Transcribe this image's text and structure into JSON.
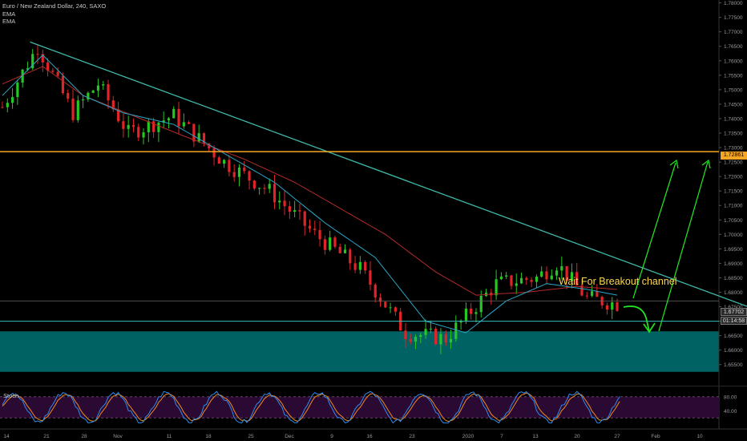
{
  "header": {
    "symbol_line": "Euro / New Zealand Dollar, 240, SAXO",
    "indicators": [
      "EMA",
      "EMA"
    ]
  },
  "stoch_label": "Stoch",
  "annotation": "Wait For Breakout channel",
  "price_tags": {
    "resistance": "1.72861",
    "last_price": "1.67702",
    "countdown": "01:14:58"
  },
  "colors": {
    "background": "#000000",
    "bull_candle": "#26c623",
    "bear_candle": "#e0242a",
    "ema_fast": "#2aa8c8",
    "ema_slow": "#b52a2a",
    "trendline": "#3fb8a8",
    "resistance": "#f5a623",
    "support_line": "#38bfc0",
    "demand_zone": "#006262",
    "arrow": "#22dd22",
    "annotation": "#ffd84a",
    "stoch_k": "#2f8cf0",
    "stoch_d": "#f08a20",
    "stoch_band": "#2a0a33"
  },
  "chart_data": {
    "type": "candlestick",
    "timeframe": "240",
    "y_axis": {
      "range": [
        1.648,
        1.781
      ],
      "ticks": [
        "1.78000",
        "1.77500",
        "1.77000",
        "1.76500",
        "1.76000",
        "1.75500",
        "1.75000",
        "1.74500",
        "1.74000",
        "1.73500",
        "1.73000",
        "1.72500",
        "1.72000",
        "1.71500",
        "1.71000",
        "1.70500",
        "1.70000",
        "1.69500",
        "1.69000",
        "1.68500",
        "1.68000",
        "1.67500",
        "1.67000",
        "1.66500",
        "1.66000",
        "1.65500"
      ]
    },
    "x_axis": {
      "tick_labels": [
        "14",
        "21",
        "28",
        "Nov",
        "11",
        "18",
        "25",
        "Dec",
        "9",
        "16",
        "23",
        "2020",
        "7",
        "13",
        "20",
        "27",
        "Feb",
        "10"
      ]
    },
    "price_path": [
      [
        0,
        1.744
      ],
      [
        7,
        1.765
      ],
      [
        14,
        1.742
      ],
      [
        19,
        1.752
      ],
      [
        25,
        1.735
      ],
      [
        34,
        1.741
      ],
      [
        44,
        1.725
      ],
      [
        53,
        1.715
      ],
      [
        62,
        1.7
      ],
      [
        71,
        1.688
      ],
      [
        80,
        1.666
      ],
      [
        88,
        1.664
      ],
      [
        98,
        1.683
      ],
      [
        106,
        1.685
      ],
      [
        110,
        1.69
      ],
      [
        116,
        1.678
      ],
      [
        122,
        1.676
      ]
    ],
    "ema_fast": [
      [
        0,
        1.748
      ],
      [
        8,
        1.762
      ],
      [
        16,
        1.748
      ],
      [
        24,
        1.742
      ],
      [
        34,
        1.738
      ],
      [
        44,
        1.728
      ],
      [
        54,
        1.718
      ],
      [
        64,
        1.704
      ],
      [
        74,
        1.692
      ],
      [
        84,
        1.67
      ],
      [
        92,
        1.666
      ],
      [
        100,
        1.677
      ],
      [
        108,
        1.683
      ],
      [
        116,
        1.681
      ],
      [
        122,
        1.679
      ]
    ],
    "ema_slow": [
      [
        0,
        1.752
      ],
      [
        8,
        1.758
      ],
      [
        16,
        1.748
      ],
      [
        26,
        1.741
      ],
      [
        36,
        1.734
      ],
      [
        48,
        1.726
      ],
      [
        58,
        1.718
      ],
      [
        68,
        1.708
      ],
      [
        76,
        1.7
      ],
      [
        86,
        1.687
      ],
      [
        94,
        1.679
      ],
      [
        104,
        1.68
      ],
      [
        114,
        1.682
      ],
      [
        122,
        1.681
      ]
    ],
    "trendline": [
      [
        5.5,
        1.7665
      ],
      [
        150,
        1.6737
      ]
    ],
    "resistance_level": 1.72861,
    "last_price": 1.67702,
    "support_line": 1.67,
    "demand_zone": [
      1.6525,
      1.6665
    ],
    "stochastic": {
      "bands": [
        20,
        80
      ],
      "ticks": [
        "80.00",
        "40.00"
      ],
      "cycle_centers": [
        4,
        14,
        24,
        34,
        44,
        56,
        68,
        80,
        92,
        104,
        112,
        121
      ]
    }
  }
}
